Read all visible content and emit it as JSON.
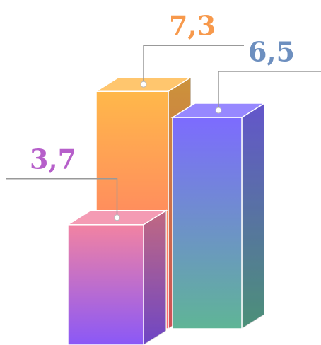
{
  "chart_data": {
    "type": "bar3d",
    "values": [
      7.3,
      6.5,
      3.7
    ],
    "value_labels": [
      "7,3",
      "6,5",
      "3,7"
    ],
    "colors": [
      [
        "#ffb84a",
        "#ff6570"
      ],
      [
        "#7d6bff",
        "#5fb596"
      ],
      [
        "#f283a2",
        "#8a58f7"
      ]
    ],
    "label_colors": [
      "#f7994c",
      "#6d8fbf",
      "#b65fca"
    ]
  }
}
